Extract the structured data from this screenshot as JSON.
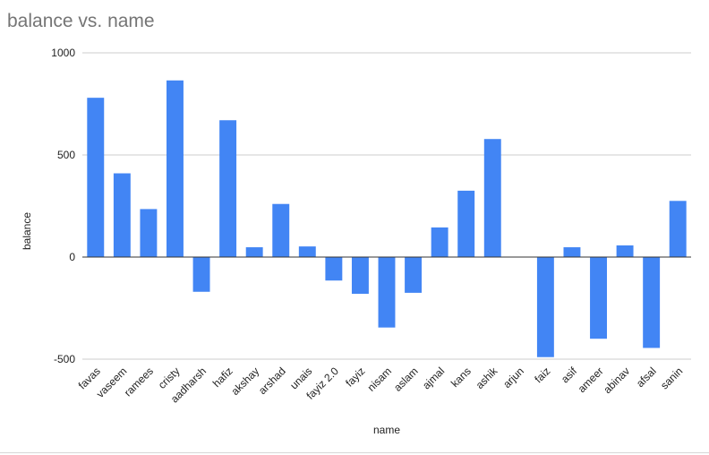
{
  "chart_data": {
    "type": "bar",
    "title": "balance vs. name",
    "xlabel": "name",
    "ylabel": "balance",
    "ylim": [
      -500,
      1000
    ],
    "yticks": [
      1000,
      500,
      0,
      -500
    ],
    "grid": true,
    "color": "#4285f4",
    "categories": [
      "favas",
      "vaseem",
      "ramees",
      "cristy",
      "aadharsh",
      "hafiz",
      "akshay",
      "arshad",
      "unais",
      "fayiz 2.0",
      "fayiz",
      "nisam",
      "aslam",
      "ajmal",
      "kans",
      "ashik",
      "arjun",
      "faiz",
      "asif",
      "ameer",
      "abinav",
      "afsal",
      "sanin"
    ],
    "values": [
      780,
      410,
      235,
      865,
      -170,
      670,
      48,
      260,
      52,
      -115,
      -180,
      -345,
      -175,
      145,
      325,
      578,
      0,
      -490,
      48,
      -400,
      57,
      -445,
      275
    ]
  }
}
